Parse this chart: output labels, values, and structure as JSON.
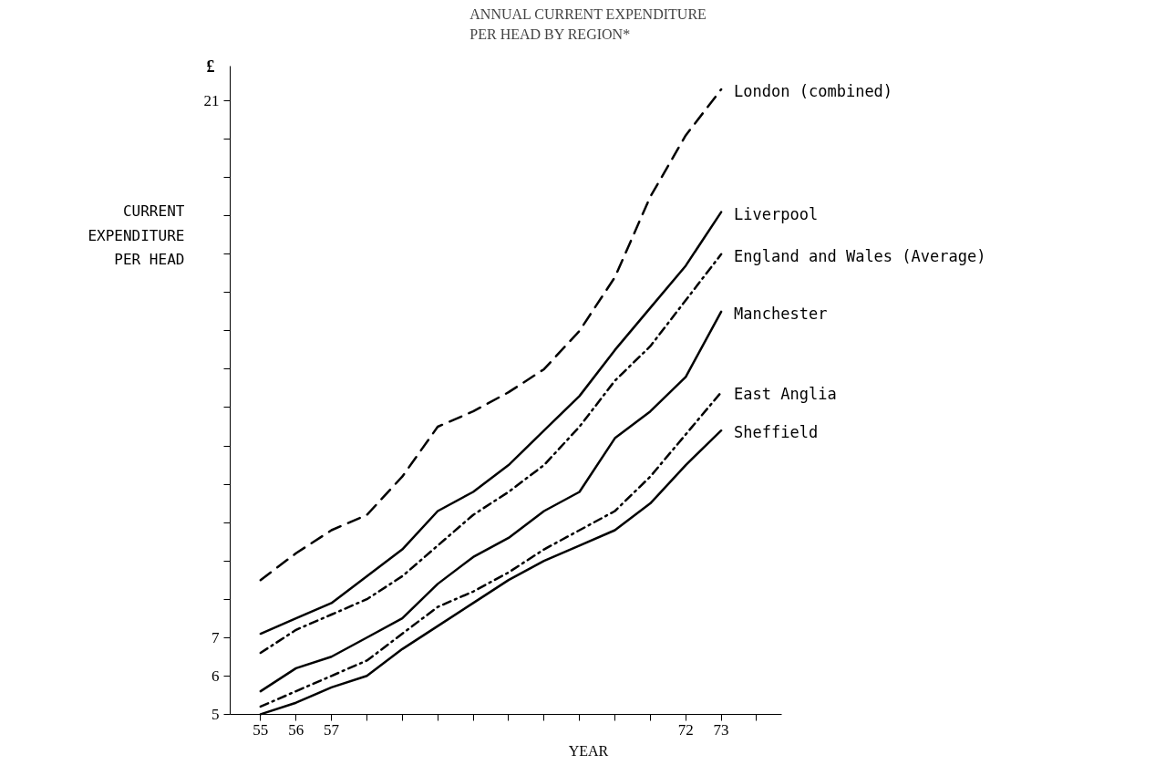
{
  "chart_data": {
    "type": "line",
    "title": "ANNUAL CURRENT EXPENDITURE\nPER HEAD BY REGION*",
    "xlabel": "YEAR",
    "ylabel": "CURRENT\nEXPENDITURE\nPER HEAD",
    "annotations": [
      "£"
    ],
    "categories": [
      "55",
      "56",
      "57",
      null,
      null,
      null,
      null,
      null,
      null,
      null,
      null,
      null,
      "72",
      "73",
      null
    ],
    "series": [
      {
        "name": "London (combined)",
        "color": "#000000",
        "line_style": "dashed",
        "values": [
          8.5,
          9.2,
          9.8,
          10.2,
          11.2,
          12.5,
          12.9,
          13.4,
          14.0,
          15.0,
          16.4,
          18.5,
          20.1,
          21.3,
          null
        ]
      },
      {
        "name": "Liverpool",
        "color": "#000000",
        "line_style": "solid",
        "values": [
          7.1,
          7.5,
          7.9,
          8.6,
          9.3,
          10.3,
          10.8,
          11.5,
          12.4,
          13.3,
          14.5,
          15.6,
          16.7,
          18.1,
          null
        ]
      },
      {
        "name": "England and Wales (Average)",
        "color": "#000000",
        "line_style": "dashed",
        "values": [
          6.6,
          7.2,
          7.6,
          8.0,
          8.6,
          9.4,
          10.2,
          10.8,
          11.5,
          12.5,
          13.7,
          14.6,
          15.8,
          17.0,
          null
        ]
      },
      {
        "name": "Manchester",
        "color": "#000000",
        "line_style": "solid",
        "values": [
          5.6,
          6.2,
          6.5,
          7.0,
          7.5,
          8.4,
          9.1,
          9.6,
          10.3,
          10.8,
          12.2,
          12.9,
          13.8,
          15.5,
          null
        ]
      },
      {
        "name": "East Anglia",
        "color": "#000000",
        "line_style": "dashed",
        "values": [
          5.2,
          5.6,
          6.0,
          6.4,
          7.1,
          7.8,
          8.2,
          8.7,
          9.3,
          9.8,
          10.3,
          11.2,
          12.3,
          13.4,
          null
        ]
      },
      {
        "name": "Sheffield",
        "color": "#000000",
        "line_style": "solid",
        "values": [
          5.0,
          5.3,
          5.7,
          6.0,
          6.7,
          7.3,
          7.9,
          8.5,
          9.0,
          9.4,
          9.8,
          10.5,
          11.5,
          12.4,
          null
        ]
      }
    ],
    "ylim": [
      5,
      21.9
    ],
    "yticks": [
      5,
      6,
      7,
      {
        "value": 8,
        "label": null
      },
      {
        "value": 9,
        "label": null
      },
      {
        "value": 10,
        "label": null
      },
      {
        "value": 11,
        "label": null
      },
      {
        "value": 12,
        "label": null
      },
      {
        "value": 13,
        "label": null
      },
      {
        "value": 14,
        "label": null
      },
      {
        "value": 15,
        "label": null
      },
      {
        "value": 16,
        "label": null
      },
      {
        "value": 17,
        "label": null
      },
      {
        "value": 18,
        "label": null
      },
      {
        "value": 19,
        "label": null
      },
      {
        "value": 20,
        "label": null
      },
      21
    ],
    "grid": false,
    "legend": false,
    "marker": "none"
  }
}
